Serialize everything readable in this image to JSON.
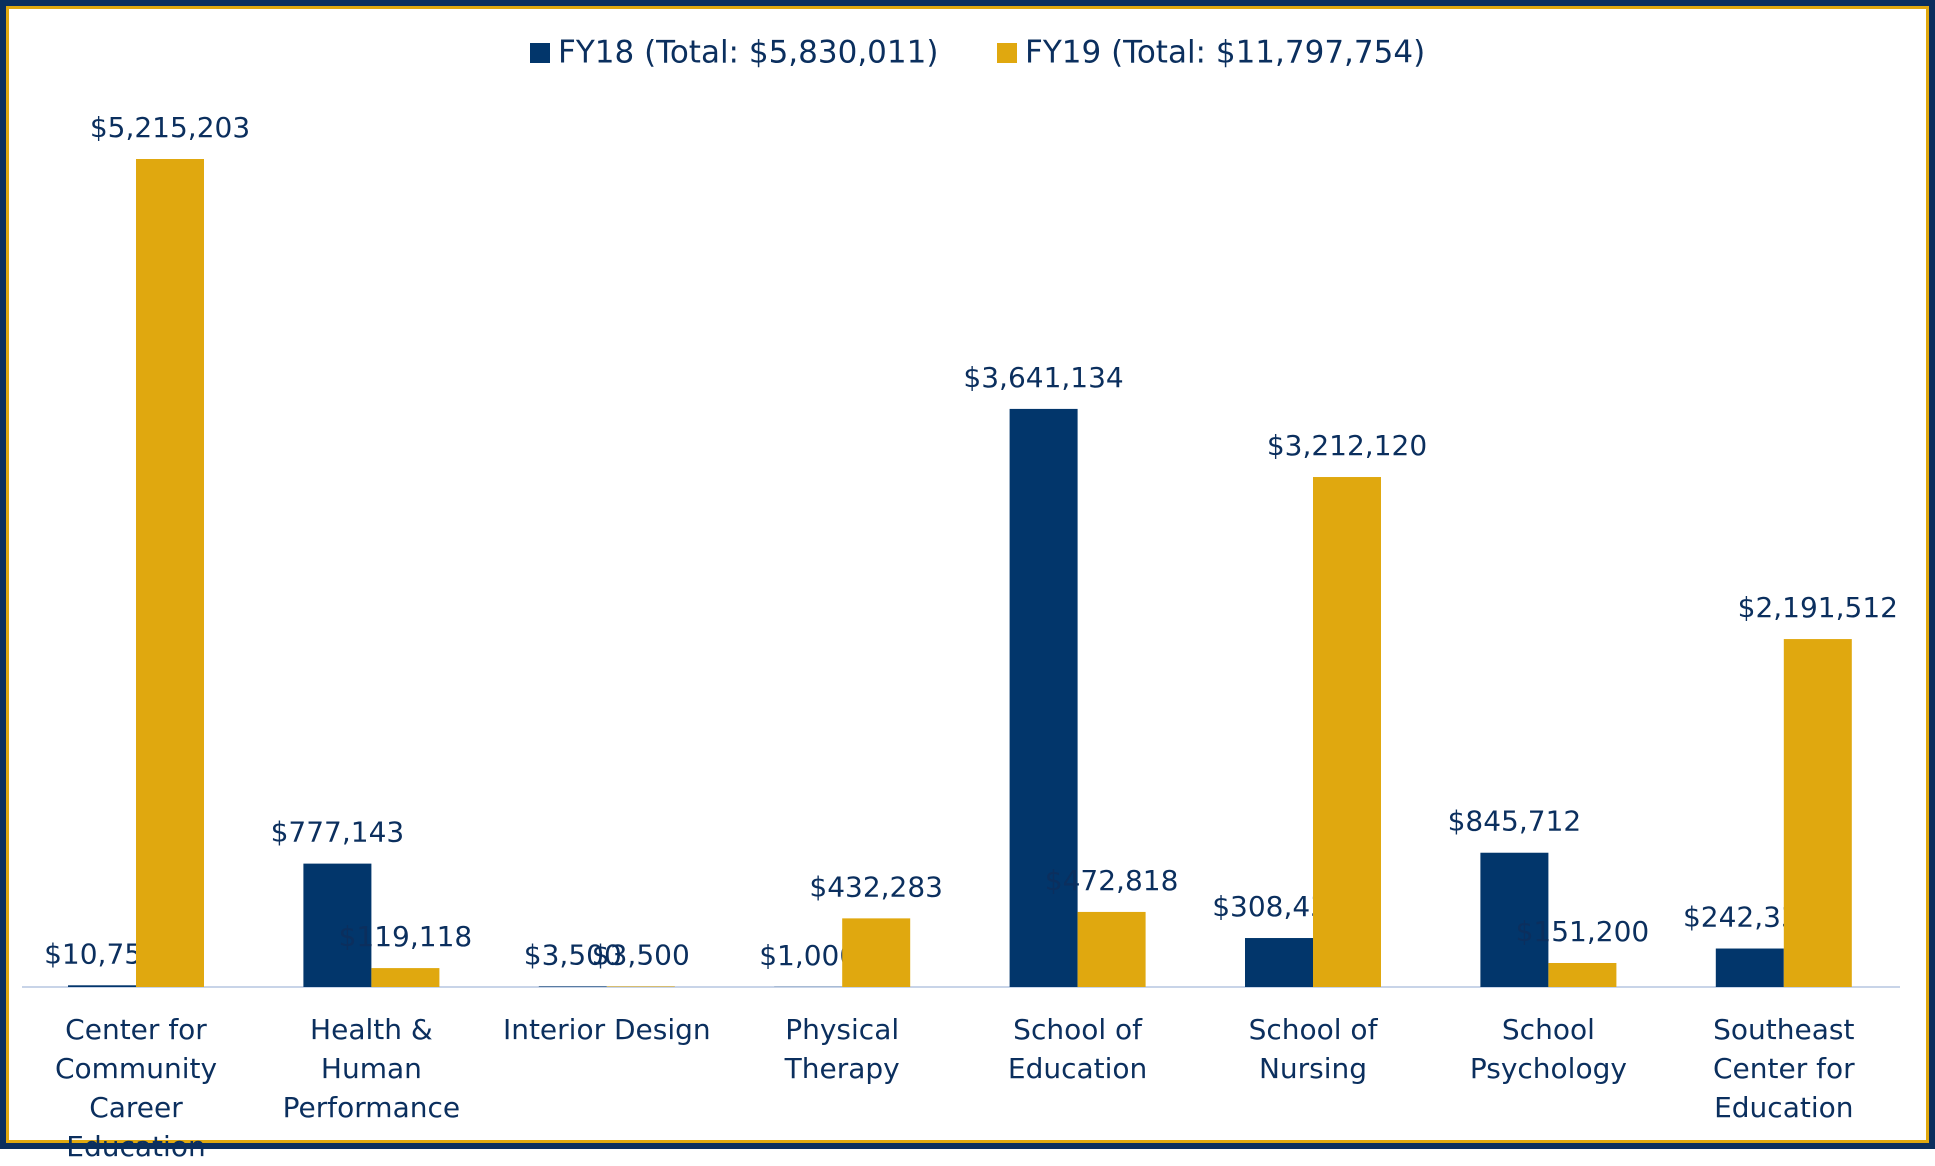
{
  "chart_data": {
    "type": "bar",
    "categories": [
      "Center for Community Career Education",
      "Health & Human Performance",
      "Interior Design",
      "Physical Therapy",
      "School of Education",
      "School of Nursing",
      "School Psychology",
      "Southeast Center for Education"
    ],
    "series": [
      {
        "name": "FY18 (Total: $5,830,011)",
        "color": "#02366b",
        "values": [
          10750,
          777143,
          3500,
          1000,
          3641134,
          308438,
          845712,
          242334
        ],
        "value_labels": [
          "$10,750",
          "$777,143",
          "$3,500",
          "$1,000",
          "$3,641,134",
          "$308,438",
          "$845,712",
          "$242,334"
        ]
      },
      {
        "name": "FY19 (Total: $11,797,754)",
        "color": "#e0a80f",
        "values": [
          5215203,
          119118,
          3500,
          432283,
          472818,
          3212120,
          151200,
          2191512
        ],
        "value_labels": [
          "$5,215,203",
          "$119,118",
          "$3,500",
          "$432,283",
          "$472,818",
          "$3,212,120",
          "$151,200",
          "$2,191,512"
        ]
      }
    ],
    "legend": "top"
  }
}
